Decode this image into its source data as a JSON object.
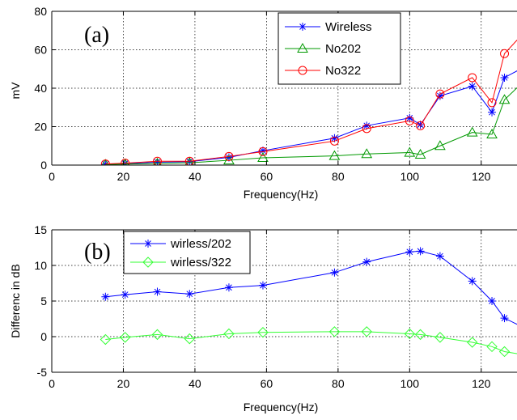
{
  "chart_data": [
    {
      "type": "line",
      "panel_label": "(a)",
      "xlabel": "Frequency(Hz)",
      "ylabel": "mV",
      "xlim": [
        0,
        130
      ],
      "ylim": [
        0,
        80
      ],
      "xticks": [
        0,
        20,
        40,
        60,
        80,
        100,
        120
      ],
      "yticks": [
        0,
        20,
        40,
        60,
        80
      ],
      "grid": true,
      "legend_position": "top-right",
      "series": [
        {
          "name": "Wireless",
          "color": "#0000ff",
          "marker": "star",
          "x": [
            15,
            20.5,
            29.5,
            38.5,
            49.5,
            59,
            79,
            88,
            100,
            103,
            108.5,
            117.5,
            123,
            126.5,
            135
          ],
          "y": [
            0.5,
            0.8,
            1.5,
            1.8,
            4,
            7.5,
            14,
            20.5,
            24.5,
            21,
            36,
            41,
            27.5,
            45.5,
            54
          ]
        },
        {
          "name": "No202",
          "color": "#009900",
          "marker": "triangle",
          "x": [
            15,
            20.5,
            29.5,
            38.5,
            49.5,
            59,
            79,
            88,
            100,
            103,
            108.5,
            117.5,
            123,
            126.5,
            135
          ],
          "y": [
            0.3,
            0.5,
            0.9,
            1.2,
            2.5,
            3.8,
            4.8,
            5.8,
            6.5,
            5.5,
            10,
            17,
            16,
            34,
            49
          ]
        },
        {
          "name": "No322",
          "color": "#ff0000",
          "marker": "circle",
          "x": [
            15,
            20.5,
            29.5,
            38.5,
            49.5,
            59,
            79,
            88,
            100,
            103,
            108.5,
            117.5,
            123,
            126.5,
            135
          ],
          "y": [
            0.6,
            1,
            2,
            2,
            4.5,
            7,
            12.5,
            19,
            23,
            20.5,
            37,
            45.5,
            32.5,
            58,
            75
          ]
        }
      ]
    },
    {
      "type": "line",
      "panel_label": "(b)",
      "xlabel": "Frequency(Hz)",
      "ylabel": "Differenc in dB",
      "xlim": [
        0,
        130
      ],
      "ylim": [
        -5,
        15
      ],
      "xticks": [
        0,
        20,
        40,
        60,
        80,
        100,
        120
      ],
      "yticks": [
        -5,
        0,
        5,
        10,
        15
      ],
      "grid": true,
      "legend_position": "top-left",
      "series": [
        {
          "name": "wirless/202",
          "color": "#0000ff",
          "marker": "star",
          "x": [
            15,
            20.5,
            29.5,
            38.5,
            49.5,
            59,
            79,
            88,
            100,
            103,
            108.5,
            117.5,
            123,
            126.5,
            135
          ],
          "y": [
            5.6,
            5.9,
            6.3,
            6,
            6.9,
            7.2,
            9,
            10.5,
            11.9,
            12,
            11.3,
            7.8,
            5,
            2.6,
            0.5
          ]
        },
        {
          "name": "wirless/322",
          "color": "#33ff33",
          "marker": "diamond",
          "x": [
            15,
            20.5,
            29.5,
            38.5,
            49.5,
            59,
            79,
            88,
            100,
            103,
            108.5,
            117.5,
            123,
            126.5,
            135
          ],
          "y": [
            -0.4,
            -0.1,
            0.3,
            -0.3,
            0.4,
            0.6,
            0.7,
            0.7,
            0.4,
            0.3,
            -0.1,
            -0.8,
            -1.4,
            -2.1,
            -2.8
          ]
        }
      ]
    }
  ]
}
